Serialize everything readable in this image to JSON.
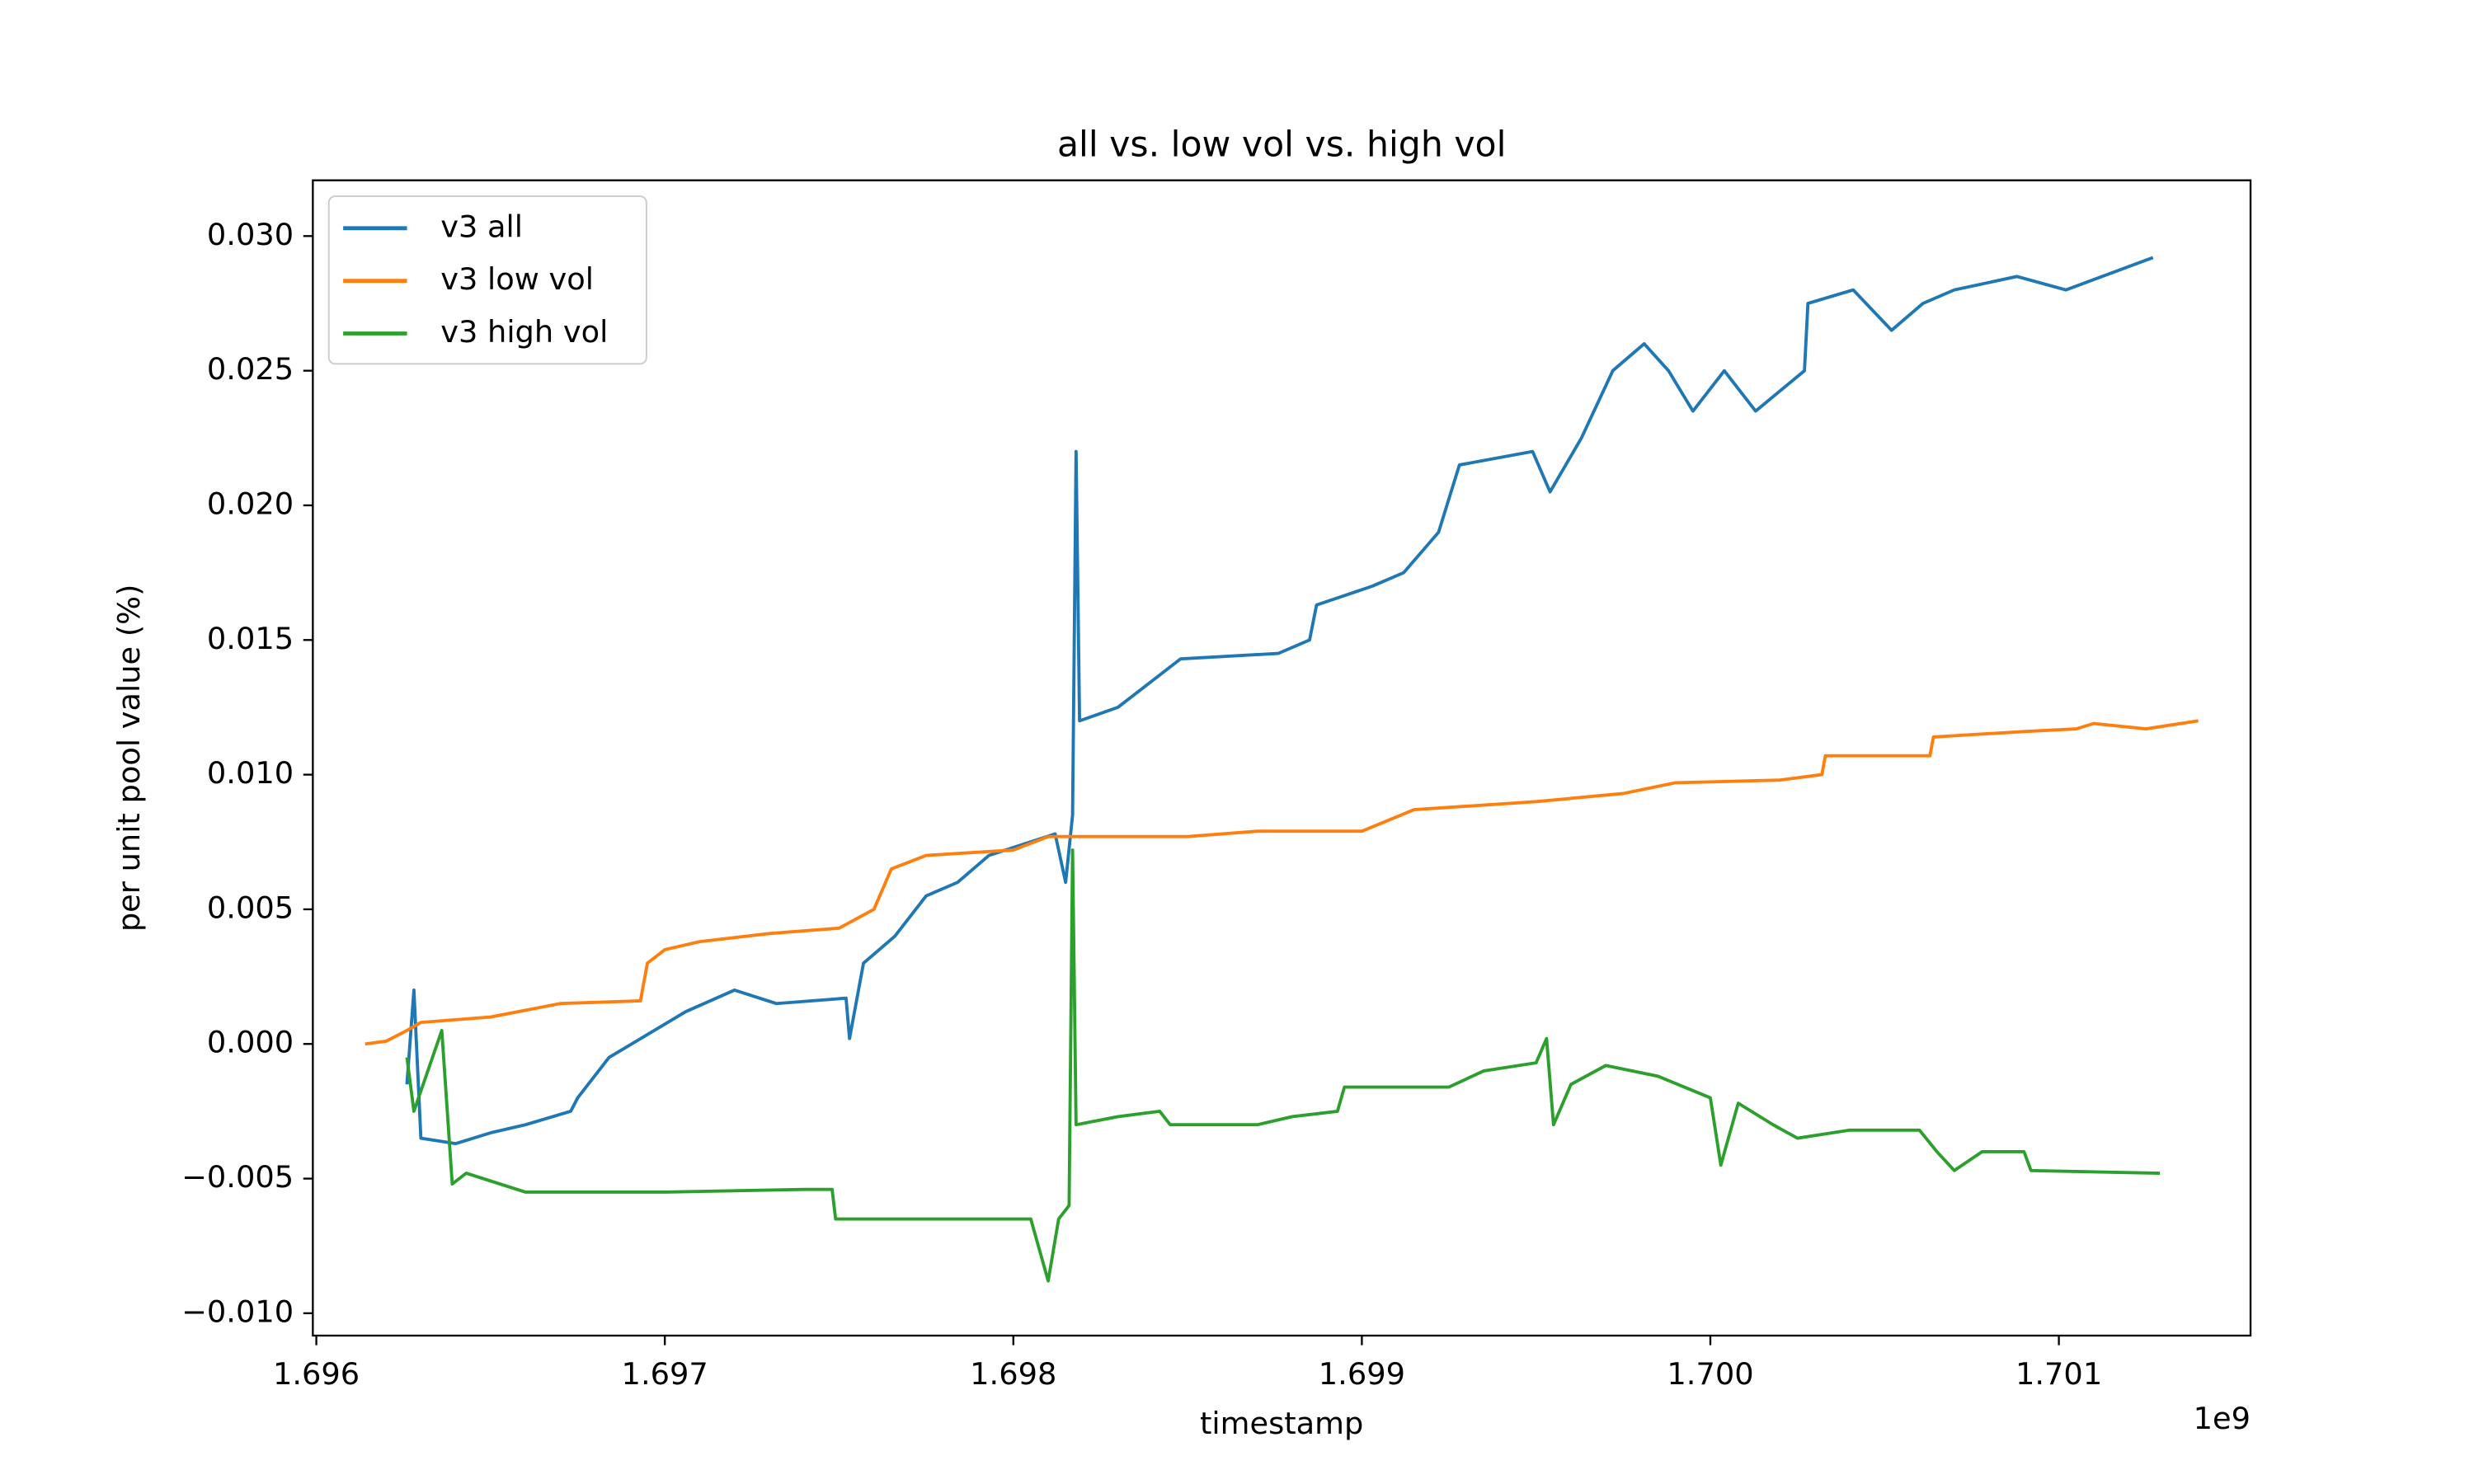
{
  "chart_data": {
    "type": "line",
    "title": "all vs. low vol vs. high vol",
    "x_label": "timestamp",
    "y_label": "per unit pool value (%)",
    "x_offset_label": "1e9",
    "xlim": [
      1.69599,
      1.70155
    ],
    "ylim": [
      -0.01083,
      0.03207
    ],
    "xticks": [
      1.696,
      1.697,
      1.698,
      1.699,
      {
        "value": 1.7,
        "label": "1.700"
      },
      1.701
    ],
    "yticks": [
      {
        "value": -0.01,
        "label": "−0.010"
      },
      {
        "value": -0.005,
        "label": "−0.005"
      },
      {
        "value": 0,
        "label": "0.000"
      },
      {
        "value": 0.005,
        "label": "0.005"
      },
      {
        "value": 0.01,
        "label": "0.010"
      },
      {
        "value": 0.015,
        "label": "0.015"
      },
      {
        "value": 0.02,
        "label": "0.020"
      },
      {
        "value": 0.025,
        "label": "0.025"
      },
      {
        "value": 0.03,
        "label": "0.030"
      }
    ],
    "legend": "upper left",
    "grid": false,
    "series": [
      {
        "name": "v3 all",
        "color": "#1f77b4",
        "x": [
          1.69626,
          1.69628,
          1.6963,
          1.6964,
          1.6965,
          1.6966,
          1.69673,
          1.69675,
          1.69684,
          1.69706,
          1.6972,
          1.69732,
          1.69752,
          1.69753,
          1.69757,
          1.69766,
          1.69775,
          1.69784,
          1.69793,
          1.69812,
          1.69815,
          1.69817,
          1.69818,
          1.69819,
          1.6983,
          1.69848,
          1.69876,
          1.69885,
          1.69887,
          1.69903,
          1.69912,
          1.69922,
          1.69928,
          1.69949,
          1.69954,
          1.69963,
          1.69972,
          1.69981,
          1.69988,
          1.69995,
          1.70004,
          1.70013,
          1.70027,
          1.70028,
          1.70041,
          1.70052,
          1.70061,
          1.7007,
          1.70088,
          1.70102,
          1.70127
        ],
        "values": [
          -0.0015,
          0.002,
          -0.0035,
          -0.0037,
          -0.0033,
          -0.003,
          -0.0025,
          -0.002,
          -0.0005,
          0.0012,
          0.002,
          0.0015,
          0.0017,
          0.0002,
          0.003,
          0.004,
          0.0055,
          0.006,
          0.007,
          0.0078,
          0.006,
          0.0085,
          0.022,
          0.012,
          0.0125,
          0.0143,
          0.0145,
          0.015,
          0.0163,
          0.017,
          0.0175,
          0.019,
          0.0215,
          0.022,
          0.0205,
          0.0225,
          0.025,
          0.026,
          0.025,
          0.0235,
          0.025,
          0.0235,
          0.025,
          0.0275,
          0.028,
          0.0265,
          0.0275,
          0.028,
          0.0285,
          0.028,
          0.0292
        ]
      },
      {
        "name": "v3 low vol",
        "color": "#ff7f0e",
        "x": [
          1.69614,
          1.6962,
          1.69626,
          1.6963,
          1.6965,
          1.6967,
          1.69693,
          1.69695,
          1.697,
          1.6971,
          1.6973,
          1.6975,
          1.6976,
          1.69765,
          1.69775,
          1.698,
          1.6981,
          1.6985,
          1.6987,
          1.699,
          1.69915,
          1.6995,
          1.69975,
          1.6999,
          1.7002,
          1.70032,
          1.70033,
          1.70063,
          1.70064,
          1.7009,
          1.70105,
          1.7011,
          1.70125,
          1.7014
        ],
        "values": [
          0.0,
          0.0001,
          0.0005,
          0.0008,
          0.001,
          0.0015,
          0.0016,
          0.003,
          0.0035,
          0.0038,
          0.0041,
          0.0043,
          0.005,
          0.0065,
          0.007,
          0.0072,
          0.0077,
          0.0077,
          0.0079,
          0.0079,
          0.0087,
          0.009,
          0.0093,
          0.0097,
          0.0098,
          0.01,
          0.0107,
          0.0107,
          0.0114,
          0.0116,
          0.0117,
          0.0119,
          0.0117,
          0.012
        ]
      },
      {
        "name": "v3 high vol",
        "color": "#2ca02c",
        "x": [
          1.69626,
          1.69628,
          1.69632,
          1.69636,
          1.69639,
          1.69643,
          1.6966,
          1.697,
          1.6974,
          1.69748,
          1.69749,
          1.6978,
          1.69805,
          1.6981,
          1.69813,
          1.69816,
          1.69817,
          1.69818,
          1.6983,
          1.69842,
          1.69845,
          1.6987,
          1.6988,
          1.69893,
          1.69895,
          1.69925,
          1.69935,
          1.6995,
          1.69953,
          1.69955,
          1.6996,
          1.6997,
          1.69985,
          1.7,
          1.70003,
          1.70008,
          1.70018,
          1.70025,
          1.7004,
          1.7006,
          1.70065,
          1.7007,
          1.70078,
          1.7009,
          1.70092,
          1.70129
        ],
        "values": [
          -0.0005,
          -0.0025,
          -0.001,
          0.0005,
          -0.0052,
          -0.0048,
          -0.0055,
          -0.0055,
          -0.0054,
          -0.0054,
          -0.0065,
          -0.0065,
          -0.0065,
          -0.0088,
          -0.0065,
          -0.006,
          0.0072,
          -0.003,
          -0.0027,
          -0.0025,
          -0.003,
          -0.003,
          -0.0027,
          -0.0025,
          -0.0016,
          -0.0016,
          -0.001,
          -0.0007,
          0.0002,
          -0.003,
          -0.0015,
          -0.0008,
          -0.0012,
          -0.002,
          -0.0045,
          -0.0022,
          -0.003,
          -0.0035,
          -0.0032,
          -0.0032,
          -0.004,
          -0.0047,
          -0.004,
          -0.004,
          -0.0047,
          -0.0048
        ]
      }
    ]
  }
}
